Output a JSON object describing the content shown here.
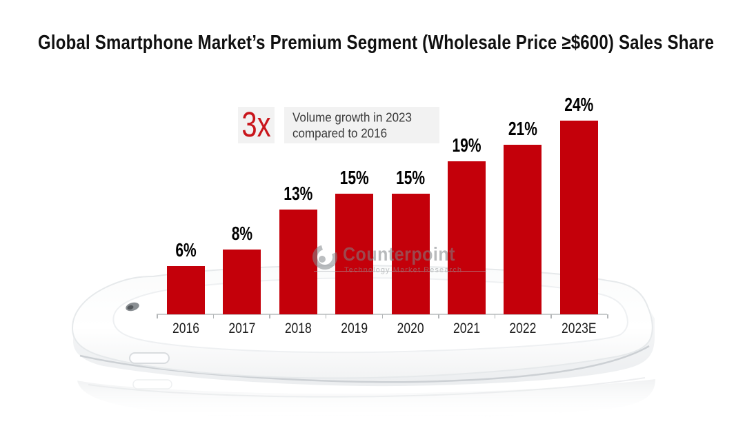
{
  "title": "Global Smartphone Market’s Premium Segment (Wholesale Price ≥$600) Sales Share",
  "annotation": {
    "multiplier": "3x",
    "text_line1": "Volume growth in 2023",
    "text_line2": "compared to 2016"
  },
  "watermark": {
    "brand": "Counterpoint",
    "tagline": "Technology Market Research"
  },
  "illustration": "white-smartphone-lying-flat-with-reflection",
  "chart_data": {
    "type": "bar",
    "title": "Global Smartphone Market’s Premium Segment (Wholesale Price ≥$600) Sales Share",
    "categories": [
      "2016",
      "2017",
      "2018",
      "2019",
      "2020",
      "2021",
      "2022",
      "2023E"
    ],
    "values": [
      6,
      8,
      13,
      15,
      15,
      19,
      21,
      24
    ],
    "unit": "%",
    "data_labels": [
      "6%",
      "8%",
      "13%",
      "15%",
      "15%",
      "19%",
      "21%",
      "24%"
    ],
    "xlabel": "",
    "ylabel": "",
    "ylim": [
      0,
      26
    ],
    "grid": false,
    "legend": false,
    "bar_color": "#C4000A",
    "annotation_text": "3x Volume growth in 2023 compared to 2016"
  },
  "colors": {
    "bar_red": "#C4000A",
    "accent_red": "#C9161C",
    "annotation_bg": "#F2F2F2",
    "title_text": "#101010",
    "axis_gray": "#C9CCCD",
    "watermark_gray": "#7F8387"
  }
}
